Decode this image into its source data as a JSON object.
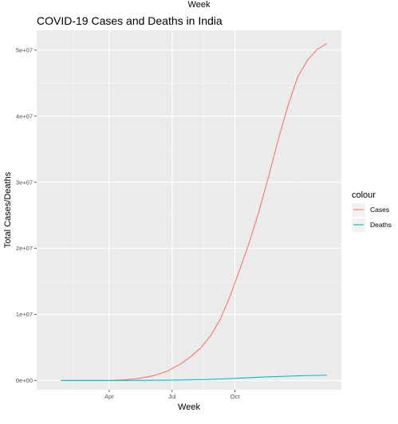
{
  "page": {
    "top_label": "Week",
    "title": "COVID-19 Cases and Deaths in India"
  },
  "chart_data": {
    "type": "line",
    "title": "COVID-19 Cases and Deaths in India",
    "xlabel": "Week",
    "ylabel": "Total Cases/Deaths",
    "x_ticks": [
      "Apr",
      "Jul",
      "Oct"
    ],
    "y_ticks": [
      "0e+00",
      "1e+07",
      "2e+07",
      "3e+07",
      "4e+07",
      "5e+07"
    ],
    "ylim": [
      0,
      53000000
    ],
    "grid": true,
    "legend_title": "colour",
    "legend_position": "right",
    "x": [
      -10,
      -5,
      0,
      3,
      6,
      9,
      12,
      15,
      17,
      19,
      21,
      23,
      25,
      27,
      29,
      31,
      33,
      35,
      37,
      39,
      41,
      43,
      45
    ],
    "series": [
      {
        "name": "Cases",
        "color": "#F8766D",
        "values": [
          0,
          0,
          0,
          100000,
          300000,
          700000,
          1400000,
          2600000,
          3700000,
          5000000,
          6800000,
          9300000,
          12800000,
          16800000,
          21000000,
          25700000,
          31000000,
          36600000,
          41700000,
          46000000,
          48500000,
          50100000,
          51000000
        ]
      },
      {
        "name": "Deaths",
        "color": "#00BFC4",
        "values": [
          0,
          0,
          0,
          4000,
          10000,
          20000,
          40000,
          70000,
          100000,
          130000,
          170000,
          230000,
          290000,
          360000,
          420000,
          490000,
          550000,
          600000,
          650000,
          700000,
          740000,
          770000,
          800000
        ]
      }
    ]
  }
}
